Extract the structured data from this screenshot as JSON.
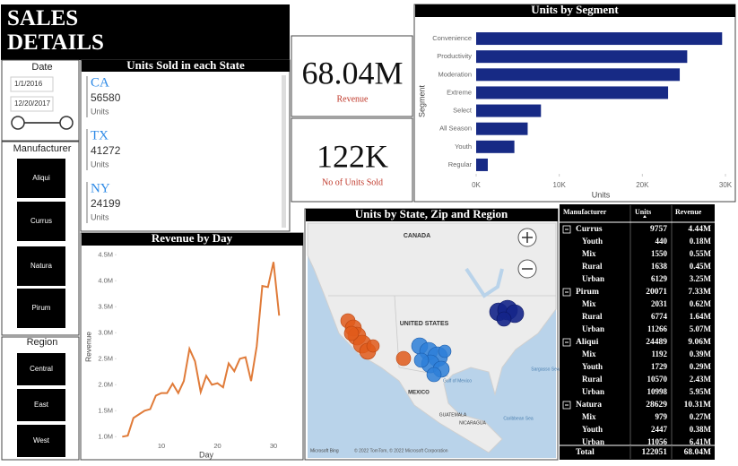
{
  "header": {
    "title": "SALES DETAILS"
  },
  "date_slicer": {
    "label": "Date",
    "start": "1/1/2016",
    "end": "12/20/2017"
  },
  "manufacturer_slicer": {
    "label": "Manufacturer",
    "items": [
      "Aliqui",
      "Currus",
      "Natura",
      "Pirum"
    ]
  },
  "region_slicer": {
    "label": "Region",
    "items": [
      "Central",
      "East",
      "West"
    ]
  },
  "state_cards": {
    "title": "Units Sold in each State",
    "items": [
      {
        "state": "CA",
        "value": 56580,
        "unit": "Units"
      },
      {
        "state": "TX",
        "value": 41272,
        "unit": "Units"
      },
      {
        "state": "NY",
        "value": 24199,
        "unit": "Units"
      }
    ]
  },
  "kpis": [
    {
      "value": "68.04M",
      "label": "Revenue"
    },
    {
      "value": "122K",
      "label": "No of Units Sold"
    }
  ],
  "map": {
    "title": "Units by State, Zip and Region",
    "labels": [
      "CANADA",
      "UNITED STATES",
      "MEXICO",
      "Gulf of Mexico",
      "GUATEMALA",
      "NICARAGUA",
      "Caribbean Sea",
      "Sargasso Sea"
    ],
    "attribution": "© 2022 TomTom, © 2022 Microsoft Corporation",
    "brand": "Microsoft Bing"
  },
  "table": {
    "columns": [
      "Manufacturer",
      "Units",
      "Revenue"
    ],
    "groups": [
      {
        "name": "Currus",
        "units": 9757,
        "revenue": "4.44M",
        "rows": [
          [
            "Youth",
            440,
            "0.18M"
          ],
          [
            "Mix",
            1550,
            "0.55M"
          ],
          [
            "Rural",
            1638,
            "0.45M"
          ],
          [
            "Urban",
            6129,
            "3.25M"
          ]
        ]
      },
      {
        "name": "Pirum",
        "units": 20071,
        "revenue": "7.33M",
        "rows": [
          [
            "Mix",
            2031,
            "0.62M"
          ],
          [
            "Rural",
            6774,
            "1.64M"
          ],
          [
            "Urban",
            11266,
            "5.07M"
          ]
        ]
      },
      {
        "name": "Aliqui",
        "units": 24489,
        "revenue": "9.06M",
        "rows": [
          [
            "Mix",
            1192,
            "0.39M"
          ],
          [
            "Youth",
            1729,
            "0.29M"
          ],
          [
            "Rural",
            10570,
            "2.43M"
          ],
          [
            "Urban",
            10998,
            "5.95M"
          ]
        ]
      },
      {
        "name": "Natura",
        "units": 28629,
        "revenue": "10.31M",
        "rows": [
          [
            "Mix",
            979,
            "0.27M"
          ],
          [
            "Youth",
            2447,
            "0.38M"
          ],
          [
            "Urban",
            11056,
            "6.41M"
          ]
        ]
      }
    ],
    "total": [
      "Total",
      122051,
      "68.04M"
    ]
  },
  "chart_data": [
    {
      "type": "bar",
      "orientation": "horizontal",
      "title": "Units by Segment",
      "x_label": "Units",
      "y_label": "Segment",
      "categories": [
        "Convenience",
        "Productivity",
        "Moderation",
        "Extreme",
        "Select",
        "All Season",
        "Youth",
        "Regular"
      ],
      "values": [
        29600,
        25400,
        24500,
        23100,
        7800,
        6200,
        4600,
        1400
      ],
      "color": "#172a85",
      "xlim": [
        0,
        30000
      ],
      "xticks": [
        {
          "value": 0,
          "label": "0K"
        },
        {
          "value": 10000,
          "label": "10K"
        },
        {
          "value": 20000,
          "label": "20K"
        },
        {
          "value": 30000,
          "label": "30K"
        }
      ]
    },
    {
      "type": "line",
      "title": "Revenue by Day",
      "x_label": "Day",
      "y_label": "Revenue",
      "color": "#e07b39",
      "x": [
        3,
        4,
        5,
        6,
        7,
        8,
        9,
        10,
        11,
        12,
        13,
        14,
        15,
        16,
        17,
        18,
        19,
        20,
        21,
        22,
        23,
        24,
        25,
        26,
        27,
        28,
        29,
        30,
        31
      ],
      "values": [
        1.0,
        1.02,
        1.36,
        1.43,
        1.5,
        1.53,
        1.79,
        1.84,
        1.84,
        2.02,
        1.84,
        2.07,
        2.69,
        2.45,
        1.86,
        2.17,
        2.0,
        2.03,
        1.95,
        2.41,
        2.26,
        2.5,
        2.53,
        2.07,
        2.74,
        3.9,
        3.88,
        4.36,
        3.33
      ],
      "xlim": [
        2,
        34
      ],
      "xticks": [
        10,
        20,
        30
      ],
      "ylim": [
        0.85,
        4.6
      ],
      "yticks": [
        {
          "value": 1.0,
          "label": "1.0M"
        },
        {
          "value": 1.5,
          "label": "1.5M"
        },
        {
          "value": 2.0,
          "label": "2.0M"
        },
        {
          "value": 2.5,
          "label": "2.5M"
        },
        {
          "value": 3.0,
          "label": "3.0M"
        },
        {
          "value": 3.5,
          "label": "3.5M"
        },
        {
          "value": 4.0,
          "label": "4.0M"
        },
        {
          "value": 4.5,
          "label": "4.5M"
        }
      ]
    }
  ]
}
